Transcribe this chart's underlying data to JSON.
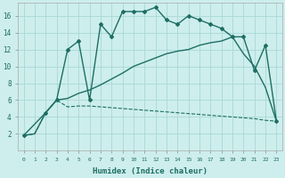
{
  "xlabel": "Humidex (Indice chaleur)",
  "bg_color": "#cdeeed",
  "line_color": "#1e6e63",
  "grid_color": "#a8d8d4",
  "xlim": [
    -0.5,
    23.5
  ],
  "ylim": [
    0,
    17.5
  ],
  "xticks": [
    0,
    1,
    2,
    3,
    4,
    5,
    6,
    7,
    8,
    9,
    10,
    11,
    12,
    13,
    14,
    15,
    16,
    17,
    18,
    19,
    20,
    21,
    22,
    23
  ],
  "yticks": [
    2,
    4,
    6,
    8,
    10,
    12,
    14,
    16
  ],
  "series": [
    {
      "x": [
        0,
        1,
        2,
        3,
        4,
        5,
        6,
        7,
        8,
        9,
        10,
        11,
        12,
        13,
        14,
        15,
        16,
        17,
        18,
        19,
        20,
        21,
        22,
        23
      ],
      "y": [
        1.8,
        2.0,
        4.5,
        6.0,
        5.2,
        5.3,
        5.3,
        5.2,
        5.1,
        5.0,
        4.9,
        4.8,
        4.7,
        4.6,
        4.5,
        4.4,
        4.3,
        4.2,
        4.1,
        4.0,
        3.9,
        3.8,
        3.6,
        3.5
      ],
      "marker": null,
      "ls": "--",
      "lw": 0.8
    },
    {
      "x": [
        0,
        1,
        2,
        3,
        4,
        5,
        6,
        7,
        8,
        9,
        10,
        11,
        12,
        13,
        14,
        15,
        16,
        17,
        18,
        19,
        20,
        21,
        22,
        23
      ],
      "y": [
        1.8,
        2.0,
        4.5,
        6.0,
        6.2,
        6.8,
        7.2,
        7.8,
        8.5,
        9.2,
        10.0,
        10.5,
        11.0,
        11.5,
        11.8,
        12.0,
        12.5,
        12.8,
        13.0,
        13.5,
        11.5,
        10.0,
        7.5,
        3.5
      ],
      "marker": null,
      "ls": "-",
      "lw": 1.0
    },
    {
      "x": [
        0,
        2,
        3,
        4,
        5,
        6,
        7,
        8,
        9,
        10,
        11,
        12,
        13,
        14,
        15,
        16,
        17,
        18,
        19,
        20,
        21,
        22,
        23
      ],
      "y": [
        1.8,
        4.5,
        6.0,
        12.0,
        13.0,
        6.0,
        15.0,
        13.5,
        16.5,
        16.5,
        16.5,
        17.0,
        15.5,
        15.0,
        16.0,
        15.5,
        15.0,
        14.5,
        13.5,
        13.5,
        9.5,
        12.5,
        3.5
      ],
      "marker": "D",
      "ls": "-",
      "lw": 1.0
    }
  ]
}
